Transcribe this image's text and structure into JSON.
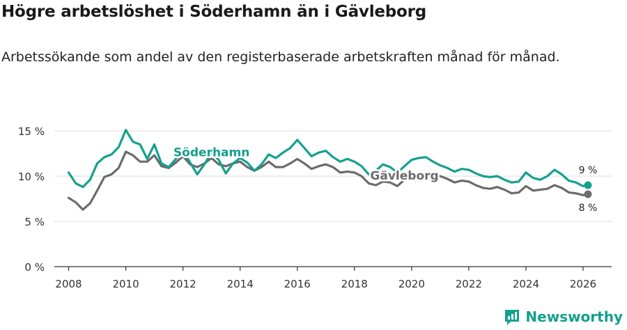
{
  "title": "Högre arbetslöshet i Söderhamn än i Gävleborg",
  "subtitle": "Arbetssökande som andel av den registerbaserade arbetskraften månad för månad.",
  "brand": {
    "name": "Newsworthy",
    "color": "#14a08f"
  },
  "chart_data": {
    "type": "line",
    "title": "Högre arbetslöshet i Söderhamn än i Gävleborg",
    "xlabel": "",
    "ylabel": "",
    "xlim": [
      2007.5,
      2027.0
    ],
    "ylim": [
      0,
      15
    ],
    "grid": true,
    "y_ticks": [
      {
        "value": 0,
        "label": "0 %"
      },
      {
        "value": 5,
        "label": "5 %"
      },
      {
        "value": 10,
        "label": "10 %"
      },
      {
        "value": 15,
        "label": "15 %"
      }
    ],
    "x_ticks": [
      {
        "value": 2008,
        "label": "2008"
      },
      {
        "value": 2010,
        "label": "2010"
      },
      {
        "value": 2012,
        "label": "2012"
      },
      {
        "value": 2014,
        "label": "2014"
      },
      {
        "value": 2016,
        "label": "2016"
      },
      {
        "value": 2018,
        "label": "2018"
      },
      {
        "value": 2020,
        "label": "2020"
      },
      {
        "value": 2022,
        "label": "2022"
      },
      {
        "value": 2024,
        "label": "2024"
      },
      {
        "value": 2026,
        "label": "2026"
      }
    ],
    "series": [
      {
        "name": "Söderhamn",
        "label": "Söderhamn",
        "color": "#14a08f",
        "end_label": "9 %",
        "x": [
          2008.0,
          2008.25,
          2008.5,
          2008.75,
          2009.0,
          2009.25,
          2009.5,
          2009.75,
          2010.0,
          2010.25,
          2010.5,
          2010.75,
          2011.0,
          2011.25,
          2011.5,
          2011.75,
          2012.0,
          2012.25,
          2012.5,
          2012.75,
          2013.0,
          2013.25,
          2013.5,
          2013.75,
          2014.0,
          2014.25,
          2014.5,
          2014.75,
          2015.0,
          2015.25,
          2015.5,
          2015.75,
          2016.0,
          2016.25,
          2016.5,
          2016.75,
          2017.0,
          2017.25,
          2017.5,
          2017.75,
          2018.0,
          2018.25,
          2018.5,
          2018.75,
          2019.0,
          2019.25,
          2019.5,
          2019.75,
          2020.0,
          2020.25,
          2020.5,
          2020.75,
          2021.0,
          2021.25,
          2021.5,
          2021.75,
          2022.0,
          2022.25,
          2022.5,
          2022.75,
          2023.0,
          2023.25,
          2023.5,
          2023.75,
          2024.0,
          2024.25,
          2024.5,
          2024.75,
          2025.0,
          2025.25,
          2025.5,
          2025.75,
          2026.0,
          2026.17
        ],
        "values": [
          10.4,
          9.2,
          8.8,
          9.6,
          11.4,
          12.1,
          12.4,
          13.2,
          15.1,
          13.8,
          13.5,
          11.9,
          13.5,
          11.4,
          11.0,
          11.9,
          12.8,
          11.5,
          10.2,
          11.3,
          12.6,
          11.8,
          10.3,
          11.4,
          12.0,
          11.5,
          10.6,
          11.3,
          12.4,
          12.0,
          12.6,
          13.1,
          14.0,
          13.1,
          12.2,
          12.6,
          12.8,
          12.1,
          11.6,
          11.9,
          11.6,
          11.1,
          10.2,
          10.6,
          11.3,
          11.0,
          10.4,
          11.1,
          11.8,
          12.0,
          12.1,
          11.6,
          11.2,
          10.9,
          10.5,
          10.8,
          10.7,
          10.3,
          10.0,
          9.9,
          10.0,
          9.6,
          9.3,
          9.4,
          10.4,
          9.8,
          9.6,
          10.0,
          10.7,
          10.2,
          9.5,
          9.3,
          8.9,
          9.0
        ]
      },
      {
        "name": "Gävleborg",
        "label": "Gävleborg",
        "color": "#6b6b6b",
        "end_label": "8 %",
        "x": [
          2008.0,
          2008.25,
          2008.5,
          2008.75,
          2009.0,
          2009.25,
          2009.5,
          2009.75,
          2010.0,
          2010.25,
          2010.5,
          2010.75,
          2011.0,
          2011.25,
          2011.5,
          2011.75,
          2012.0,
          2012.25,
          2012.5,
          2012.75,
          2013.0,
          2013.25,
          2013.5,
          2013.75,
          2014.0,
          2014.25,
          2014.5,
          2014.75,
          2015.0,
          2015.25,
          2015.5,
          2015.75,
          2016.0,
          2016.25,
          2016.5,
          2016.75,
          2017.0,
          2017.25,
          2017.5,
          2017.75,
          2018.0,
          2018.25,
          2018.5,
          2018.75,
          2019.0,
          2019.25,
          2019.5,
          2019.75,
          2020.0,
          2020.25,
          2020.5,
          2020.75,
          2021.0,
          2021.25,
          2021.5,
          2021.75,
          2022.0,
          2022.25,
          2022.5,
          2022.75,
          2023.0,
          2023.25,
          2023.5,
          2023.75,
          2024.0,
          2024.25,
          2024.5,
          2024.75,
          2025.0,
          2025.25,
          2025.5,
          2025.75,
          2026.0,
          2026.17
        ],
        "values": [
          7.6,
          7.1,
          6.3,
          7.0,
          8.4,
          9.9,
          10.2,
          10.9,
          12.7,
          12.3,
          11.6,
          11.6,
          12.3,
          11.1,
          10.9,
          11.5,
          12.2,
          11.3,
          11.0,
          11.4,
          12.0,
          11.3,
          11.1,
          11.4,
          11.6,
          11.0,
          10.6,
          11.0,
          11.6,
          11.0,
          11.0,
          11.4,
          11.9,
          11.4,
          10.8,
          11.1,
          11.3,
          11.0,
          10.4,
          10.5,
          10.4,
          10.0,
          9.2,
          9.0,
          9.4,
          9.3,
          8.9,
          9.6,
          10.2,
          10.1,
          10.4,
          10.1,
          10.0,
          9.7,
          9.3,
          9.5,
          9.4,
          9.0,
          8.7,
          8.6,
          8.8,
          8.5,
          8.1,
          8.2,
          8.9,
          8.4,
          8.5,
          8.6,
          9.0,
          8.7,
          8.2,
          8.1,
          7.9,
          8.0
        ]
      }
    ]
  }
}
